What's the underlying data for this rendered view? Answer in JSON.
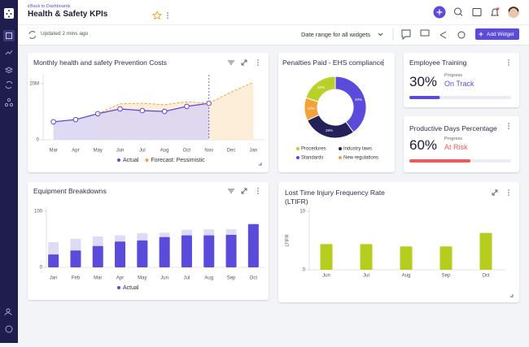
{
  "header": {
    "back": "Back to Dashboards",
    "title": "Health & Safety KPIs"
  },
  "toolbar": {
    "updated": "Updated 2 mins ago",
    "date_range": "Date range for all widgets",
    "add_widget": "Add Widget"
  },
  "kpis": [
    {
      "title": "Employee Training",
      "value": 30,
      "value_label": "30%",
      "progress_label": "Progress",
      "status": "On Track",
      "color": "#5b4bdb"
    },
    {
      "title": "Productive Days Percentage",
      "value": 60,
      "value_label": "60%",
      "progress_label": "Progress",
      "status": "At Risk",
      "color": "#ec5b5b"
    }
  ],
  "chart_data": [
    {
      "type": "line",
      "title": "Monthly health and safety Prevention Costs",
      "categories": [
        "Mar",
        "Apr",
        "May",
        "Jun",
        "Jul",
        "Aug",
        "Oct",
        "Nov",
        "Dec",
        "Jan"
      ],
      "series": [
        {
          "name": "Actual",
          "color": "#5b4bdb",
          "fill": "#d9d3f2",
          "markers": true,
          "values": [
            6.4,
            7.2,
            9.3,
            11,
            10.4,
            10.1,
            11.9,
            13,
            null,
            null
          ]
        },
        {
          "name": "Forecast: Pessimistic",
          "color": "#f5a13a",
          "fill": "#fdebd3",
          "dashed": true,
          "values": [
            null,
            null,
            9.3,
            12.8,
            13,
            12.5,
            13.5,
            13,
            17,
            20.5
          ]
        }
      ],
      "ylim": [
        0,
        22
      ],
      "yticks": [
        0,
        {
          "value": 20,
          "label": "20M"
        }
      ]
    },
    {
      "type": "pie",
      "title": "Penalties Paid - EHS compliance",
      "categories": [
        "Standards",
        "Industry laws",
        "New regulations",
        "Procedures"
      ],
      "values": [
        40,
        28,
        12,
        20
      ],
      "value_labels": [
        "40%",
        "28%",
        "12%",
        "20%"
      ],
      "colors": [
        "#5b4bdb",
        "#23205a",
        "#f5a13a",
        "#b9d02a"
      ]
    },
    {
      "type": "bar",
      "title": "Equipment Breakdowns",
      "categories": [
        "Jan",
        "Feb",
        "Mar",
        "Apr",
        "May",
        "Jun",
        "Jul",
        "Aug",
        "Sep",
        "Oct"
      ],
      "series": [
        {
          "name": "Actual",
          "color": "#5b4bdb",
          "values": [
            23,
            30,
            38,
            46,
            48,
            54,
            57,
            57,
            58,
            77
          ]
        },
        {
          "color": "#dedbf6",
          "values": [
            45,
            51,
            55,
            57,
            61,
            62,
            67,
            68,
            68,
            78
          ]
        }
      ],
      "ylim": [
        0,
        100
      ],
      "yticks": [
        0,
        100
      ]
    },
    {
      "type": "bar",
      "title": "Lost Time Injury Frequency Rate (LTIFR)",
      "y_label": "LTIFR",
      "categories": [
        "Jun",
        "Jul",
        "Aug",
        "Sep",
        "Oct"
      ],
      "values": [
        4.4,
        4.4,
        4,
        4,
        6.3
      ],
      "color": "#b6cc1e",
      "ylim": [
        0,
        10
      ],
      "yticks": [
        0,
        10
      ]
    }
  ]
}
